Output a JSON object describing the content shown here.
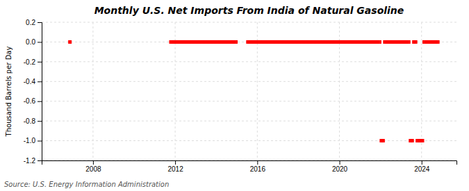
{
  "chart_data": {
    "type": "scatter",
    "title": "Monthly U.S. Net Imports From India of Natural Gasoline",
    "ylabel": "Thousand Barrels per Day",
    "annotations": [
      "Source: U.S. Energy Information Administration"
    ],
    "color": "#ff0000",
    "marker": "square",
    "grid": true,
    "xlim": [
      2005.5,
      2025.7
    ],
    "xticks": [
      2008,
      2012,
      2016,
      2020,
      2024
    ],
    "ylim": [
      -1.2,
      0.2
    ],
    "yticks": [
      0.2,
      {
        "value": 0,
        "label": "0.0"
      },
      -0.2,
      -0.4,
      -0.6,
      -0.8,
      {
        "value": -1,
        "label": "-1.0"
      },
      -1.2
    ],
    "x": [
      2006.875,
      2011.7916666666667,
      2011.875,
      2011.9583333333333,
      2012.0416666666667,
      2012.125,
      2012.2083333333333,
      2012.2916666666667,
      2012.375,
      2012.4583333333333,
      2012.5416666666667,
      2012.625,
      2012.7083333333333,
      2012.7916666666667,
      2012.875,
      2012.9583333333333,
      2013.0416666666667,
      2013.125,
      2013.2083333333333,
      2013.2916666666667,
      2013.375,
      2013.4583333333333,
      2013.5416666666667,
      2013.625,
      2013.7083333333333,
      2013.7916666666667,
      2013.875,
      2013.9583333333333,
      2014.0416666666667,
      2014.125,
      2014.2083333333333,
      2014.2916666666667,
      2014.375,
      2014.4583333333333,
      2014.5416666666667,
      2014.625,
      2014.7083333333333,
      2014.7916666666667,
      2014.875,
      2014.9583333333333,
      2015.5416666666667,
      2015.625,
      2015.7083333333333,
      2015.7916666666667,
      2015.875,
      2015.9583333333333,
      2016.0416666666667,
      2016.125,
      2016.2083333333333,
      2016.2916666666667,
      2016.375,
      2016.4583333333333,
      2016.5416666666667,
      2016.625,
      2016.7083333333333,
      2016.7916666666667,
      2016.875,
      2016.9583333333333,
      2017.0416666666667,
      2017.125,
      2017.2083333333333,
      2017.2916666666667,
      2017.375,
      2017.4583333333333,
      2017.5416666666667,
      2017.625,
      2017.7083333333333,
      2017.7916666666667,
      2017.875,
      2017.9583333333333,
      2018.0416666666667,
      2018.125,
      2018.2083333333333,
      2018.2916666666667,
      2018.375,
      2018.4583333333333,
      2018.5416666666667,
      2018.625,
      2018.7083333333333,
      2018.7916666666667,
      2018.875,
      2018.9583333333333,
      2019.0416666666667,
      2019.125,
      2019.2083333333333,
      2019.2916666666667,
      2019.375,
      2019.4583333333333,
      2019.5416666666667,
      2019.625,
      2019.7083333333333,
      2019.7916666666667,
      2019.875,
      2019.9583333333333,
      2020.0416666666667,
      2020.125,
      2020.2083333333333,
      2020.2916666666667,
      2020.375,
      2020.4583333333333,
      2020.5416666666667,
      2020.625,
      2020.7083333333333,
      2020.7916666666667,
      2020.875,
      2020.9583333333333,
      2021.0416666666667,
      2021.125,
      2021.2083333333333,
      2021.2916666666667,
      2021.375,
      2021.4583333333333,
      2021.5416666666667,
      2021.625,
      2021.7083333333333,
      2021.7916666666667,
      2021.875,
      2021.9583333333333,
      2022.0416666666667,
      2022.125,
      2022.2083333333333,
      2022.2916666666667,
      2022.375,
      2022.4583333333333,
      2022.5416666666667,
      2022.625,
      2022.7083333333333,
      2022.7916666666667,
      2022.875,
      2022.9583333333333,
      2023.0416666666667,
      2023.125,
      2023.2083333333333,
      2023.2916666666667,
      2023.375,
      2023.4583333333333,
      2023.5416666666667,
      2023.625,
      2023.7083333333333,
      2023.7916666666667,
      2023.875,
      2023.9583333333333,
      2024.0416666666667,
      2024.125,
      2024.2083333333333,
      2024.2916666666667,
      2024.375,
      2024.4583333333333,
      2024.5416666666667,
      2024.625,
      2024.7083333333333,
      2024.7916666666667
    ],
    "values": [
      0.0,
      0.0,
      0.0,
      0.0,
      0.0,
      0.0,
      0.0,
      0.0,
      0.0,
      0.0,
      0.0,
      0.0,
      0.0,
      0.0,
      0.0,
      0.0,
      0.0,
      0.0,
      0.0,
      0.0,
      0.0,
      0.0,
      0.0,
      0.0,
      0.0,
      0.0,
      0.0,
      0.0,
      0.0,
      0.0,
      0.0,
      0.0,
      0.0,
      0.0,
      0.0,
      0.0,
      0.0,
      0.0,
      0.0,
      0.0,
      0.0,
      0.0,
      0.0,
      0.0,
      0.0,
      0.0,
      0.0,
      0.0,
      0.0,
      0.0,
      0.0,
      0.0,
      0.0,
      0.0,
      0.0,
      0.0,
      0.0,
      0.0,
      0.0,
      0.0,
      0.0,
      0.0,
      0.0,
      0.0,
      0.0,
      0.0,
      0.0,
      0.0,
      0.0,
      0.0,
      0.0,
      0.0,
      0.0,
      0.0,
      0.0,
      0.0,
      0.0,
      0.0,
      0.0,
      0.0,
      0.0,
      0.0,
      0.0,
      0.0,
      0.0,
      0.0,
      0.0,
      0.0,
      0.0,
      0.0,
      0.0,
      0.0,
      0.0,
      0.0,
      0.0,
      0.0,
      0.0,
      0.0,
      0.0,
      0.0,
      0.0,
      0.0,
      0.0,
      0.0,
      0.0,
      0.0,
      0.0,
      0.0,
      0.0,
      0.0,
      0.0,
      0.0,
      0.0,
      0.0,
      0.0,
      0.0,
      0.0,
      0.0,
      -1.0,
      -1.0,
      0.0,
      0.0,
      0.0,
      0.0,
      0.0,
      0.0,
      0.0,
      0.0,
      0.0,
      0.0,
      0.0,
      0.0,
      0.0,
      0.0,
      0.0,
      -1.0,
      -1.0,
      0.0,
      0.0,
      -1.0,
      -1.0,
      -1.0,
      -1.0,
      0.0,
      0.0,
      0.0,
      0.0,
      0.0,
      0.0,
      0.0,
      0.0,
      0.0
    ]
  }
}
